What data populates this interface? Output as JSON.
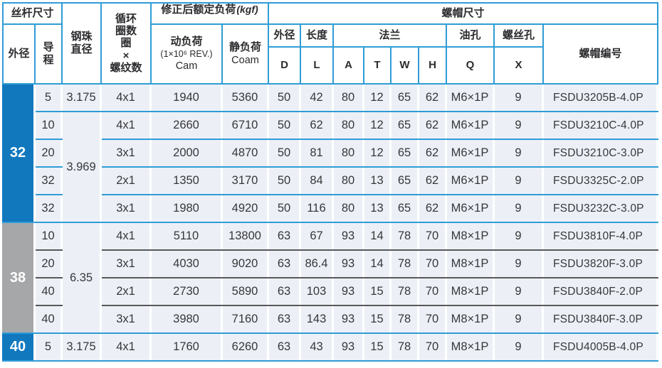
{
  "table": {
    "header": {
      "screw_size": "丝杆尺寸",
      "outer_dia": "外径",
      "lead": "导\n程",
      "ball_dia": "钢珠\n直径",
      "circuits": "循环\n圈数\n圈\n×\n螺纹数",
      "corrected_load": "修正后额定负荷",
      "corrected_load_unit": "(kgf)",
      "dyn_load_1": "动负荷",
      "dyn_load_2": "(1×10⁶ REV.)",
      "dyn_load_3": "Cam",
      "stat_load_1": "静负荷",
      "stat_load_2": "Coam",
      "nut_size": "螺帽尺寸",
      "nut_od": "外径",
      "nut_len": "长度",
      "flange": "法兰",
      "oil_hole": "油孔",
      "screw_hole": "螺丝孔",
      "nut_no": "螺帽编号",
      "letters": [
        "D",
        "L",
        "A",
        "T",
        "W",
        "H",
        "Q",
        "X"
      ]
    },
    "labels": {
      "g32": "32",
      "g38": "38",
      "g40": "40"
    },
    "spans": {
      "ball_32": "3.969",
      "ball_38": "6.35"
    },
    "rows": [
      [
        "5",
        "3.175",
        "4x1",
        "1940",
        "5360",
        "50",
        "42",
        "80",
        "12",
        "65",
        "62",
        "M6×1P",
        "9",
        "FSDU3205B-4.0P"
      ],
      [
        "10",
        "4x1",
        "2660",
        "6710",
        "50",
        "62",
        "80",
        "12",
        "65",
        "62",
        "M6×1P",
        "9",
        "FSDU3210C-4.0P"
      ],
      [
        "20",
        "3x1",
        "2000",
        "4870",
        "50",
        "81",
        "80",
        "12",
        "65",
        "62",
        "M6×1P",
        "9",
        "FSDU3210C-3.0P"
      ],
      [
        "32",
        "2x1",
        "1350",
        "3170",
        "50",
        "84",
        "80",
        "13",
        "65",
        "62",
        "M6×1P",
        "9",
        "FSDU3325C-2.0P"
      ],
      [
        "32",
        "3x1",
        "1980",
        "4920",
        "50",
        "116",
        "80",
        "13",
        "65",
        "62",
        "M6×1P",
        "9",
        "FSDU3232C-3.0P"
      ],
      [
        "10",
        "4x1",
        "5110",
        "13800",
        "63",
        "67",
        "93",
        "14",
        "78",
        "70",
        "M8×1P",
        "9",
        "FSDU3810F-4.0P"
      ],
      [
        "20",
        "3x1",
        "4030",
        "9020",
        "63",
        "86.4",
        "93",
        "14",
        "78",
        "70",
        "M8×1P",
        "9",
        "FSDU3820F-3.0P"
      ],
      [
        "40",
        "2x1",
        "2730",
        "5890",
        "63",
        "103",
        "93",
        "15",
        "78",
        "70",
        "M8×1P",
        "9",
        "FSDU3840F-2.0P"
      ],
      [
        "40",
        "3x1",
        "3980",
        "7160",
        "63",
        "143",
        "93",
        "15",
        "78",
        "70",
        "M8×1P",
        "9",
        "FSDU3840F-3.0P"
      ],
      [
        "5",
        "3.175",
        "4x1",
        "1760",
        "6260",
        "63",
        "43",
        "93",
        "15",
        "78",
        "70",
        "M8×1P",
        "9",
        "FSDU4005B-4.0P"
      ]
    ],
    "colors": {
      "accent_blue": "#2f9cd6",
      "label_blue": "#1278be",
      "label_gray": "#a6a7a9",
      "cell_bg": "#ecf0f6",
      "dark_line": "#58585a"
    }
  }
}
